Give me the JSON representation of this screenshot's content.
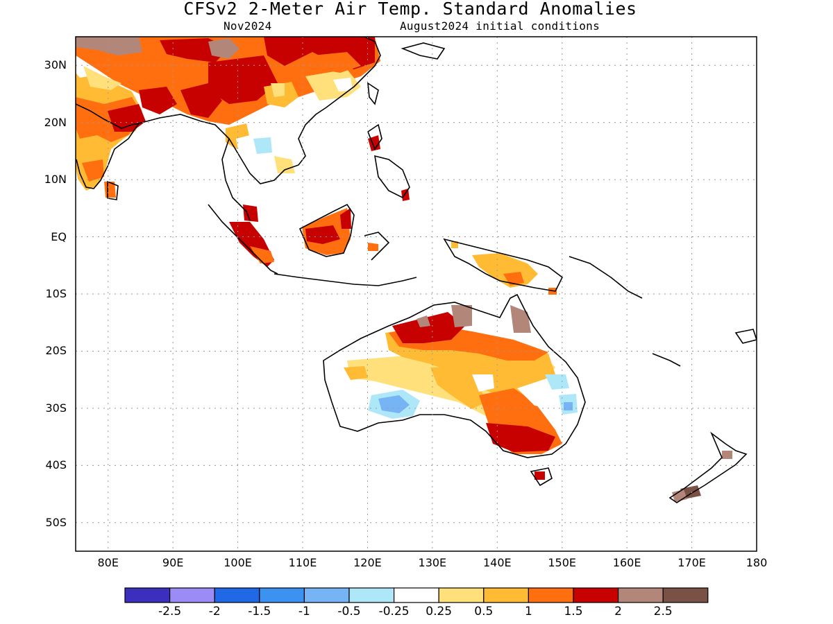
{
  "header": {
    "title": "CFSv2 2-Meter Air Temp. Standard Anomalies",
    "forecast_month": "Nov2024",
    "initial_conditions": "August2024 initial conditions"
  },
  "axes": {
    "lat_labels": [
      "30N",
      "20N",
      "10N",
      "EQ",
      "10S",
      "20S",
      "30S",
      "40S",
      "50S"
    ],
    "lat_values": [
      30,
      20,
      10,
      0,
      -10,
      -20,
      -30,
      -40,
      -50
    ],
    "lon_labels": [
      "80E",
      "90E",
      "100E",
      "110E",
      "120E",
      "130E",
      "140E",
      "150E",
      "160E",
      "170E",
      "180"
    ],
    "lon_values": [
      80,
      90,
      100,
      110,
      120,
      130,
      140,
      150,
      160,
      170,
      180
    ],
    "lon_range": [
      75,
      180
    ],
    "lat_range": [
      -55,
      35
    ],
    "grid": "dotted"
  },
  "colorbar": {
    "labels": [
      "-2.5",
      "-2",
      "-1.5",
      "-1",
      "-0.5",
      "-0.25",
      "0.25",
      "0.5",
      "1",
      "1.5",
      "2",
      "2.5"
    ],
    "colors": [
      "#3d2fbe",
      "#9b8bf5",
      "#2168e6",
      "#3b92f0",
      "#76b4f6",
      "#aee8f8",
      "#ffffff",
      "#ffe07a",
      "#ffbb33",
      "#ff6e0f",
      "#c70000",
      "#b3867a",
      "#7a5145"
    ]
  },
  "map_regions": [
    {
      "name": "Australia",
      "description": "warm anomalies north and southeast, cool patch southwest interior"
    },
    {
      "name": "Southeast Asia",
      "description": "widespread warm anomalies over south China and India"
    },
    {
      "name": "Maritime Continent",
      "description": "warm anomalies over Borneo, Sumatra, New Guinea"
    },
    {
      "name": "New Zealand",
      "description": "small warm anomalies"
    }
  ]
}
